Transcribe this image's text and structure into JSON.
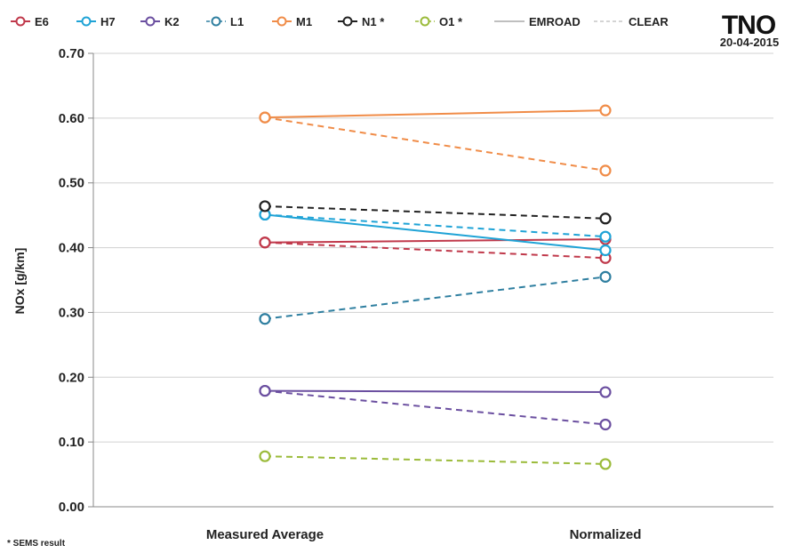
{
  "logo": {
    "text": "TNO",
    "date": "20-04-2015"
  },
  "footnote": "* SEMS result",
  "chart_data": {
    "type": "line",
    "categories": [
      "Measured Average",
      "Normalized"
    ],
    "ylabel": "NOx [g/km]",
    "ylim": [
      0,
      0.7
    ],
    "yticks": [
      "0.00",
      "0.10",
      "0.20",
      "0.30",
      "0.40",
      "0.50",
      "0.60",
      "0.70"
    ],
    "grid": true,
    "legend_position": "top",
    "legend": [
      {
        "label": "E6",
        "color": "#c0394b",
        "style": "line-marker"
      },
      {
        "label": "H7",
        "color": "#1fa3d6",
        "style": "line-marker"
      },
      {
        "label": "K2",
        "color": "#6b4fa0",
        "style": "line-marker"
      },
      {
        "label": "L1",
        "color": "#2f7fa0",
        "style": "dash-marker"
      },
      {
        "label": "M1",
        "color": "#f08c48",
        "style": "line-marker"
      },
      {
        "label": "N1 *",
        "color": "#222222",
        "style": "line-marker"
      },
      {
        "label": "O1 *",
        "color": "#9bbb3a",
        "style": "dash-marker"
      },
      {
        "label": "EMROAD",
        "color": "#999999",
        "style": "line"
      },
      {
        "label": "CLEAR",
        "color": "#bbbbbb",
        "style": "dash"
      }
    ],
    "series": [
      {
        "name": "E6",
        "color": "#c0394b",
        "dash": false,
        "values": [
          0.408,
          0.413
        ]
      },
      {
        "name": "E6",
        "color": "#c0394b",
        "dash": true,
        "values": [
          0.408,
          0.384
        ]
      },
      {
        "name": "H7",
        "color": "#1fa3d6",
        "dash": false,
        "values": [
          0.451,
          0.396
        ]
      },
      {
        "name": "H7",
        "color": "#1fa3d6",
        "dash": true,
        "values": [
          0.451,
          0.417
        ]
      },
      {
        "name": "K2",
        "color": "#6b4fa0",
        "dash": false,
        "values": [
          0.179,
          0.177
        ]
      },
      {
        "name": "K2",
        "color": "#6b4fa0",
        "dash": true,
        "values": [
          0.179,
          0.127
        ]
      },
      {
        "name": "L1",
        "color": "#2f7fa0",
        "dash": true,
        "values": [
          0.29,
          0.355
        ]
      },
      {
        "name": "M1",
        "color": "#f08c48",
        "dash": false,
        "values": [
          0.601,
          0.612
        ]
      },
      {
        "name": "M1",
        "color": "#f08c48",
        "dash": true,
        "values": [
          0.601,
          0.519
        ]
      },
      {
        "name": "N1 *",
        "color": "#222222",
        "dash": true,
        "values": [
          0.464,
          0.445
        ]
      },
      {
        "name": "O1 *",
        "color": "#9bbb3a",
        "dash": true,
        "values": [
          0.078,
          0.066
        ]
      }
    ]
  }
}
